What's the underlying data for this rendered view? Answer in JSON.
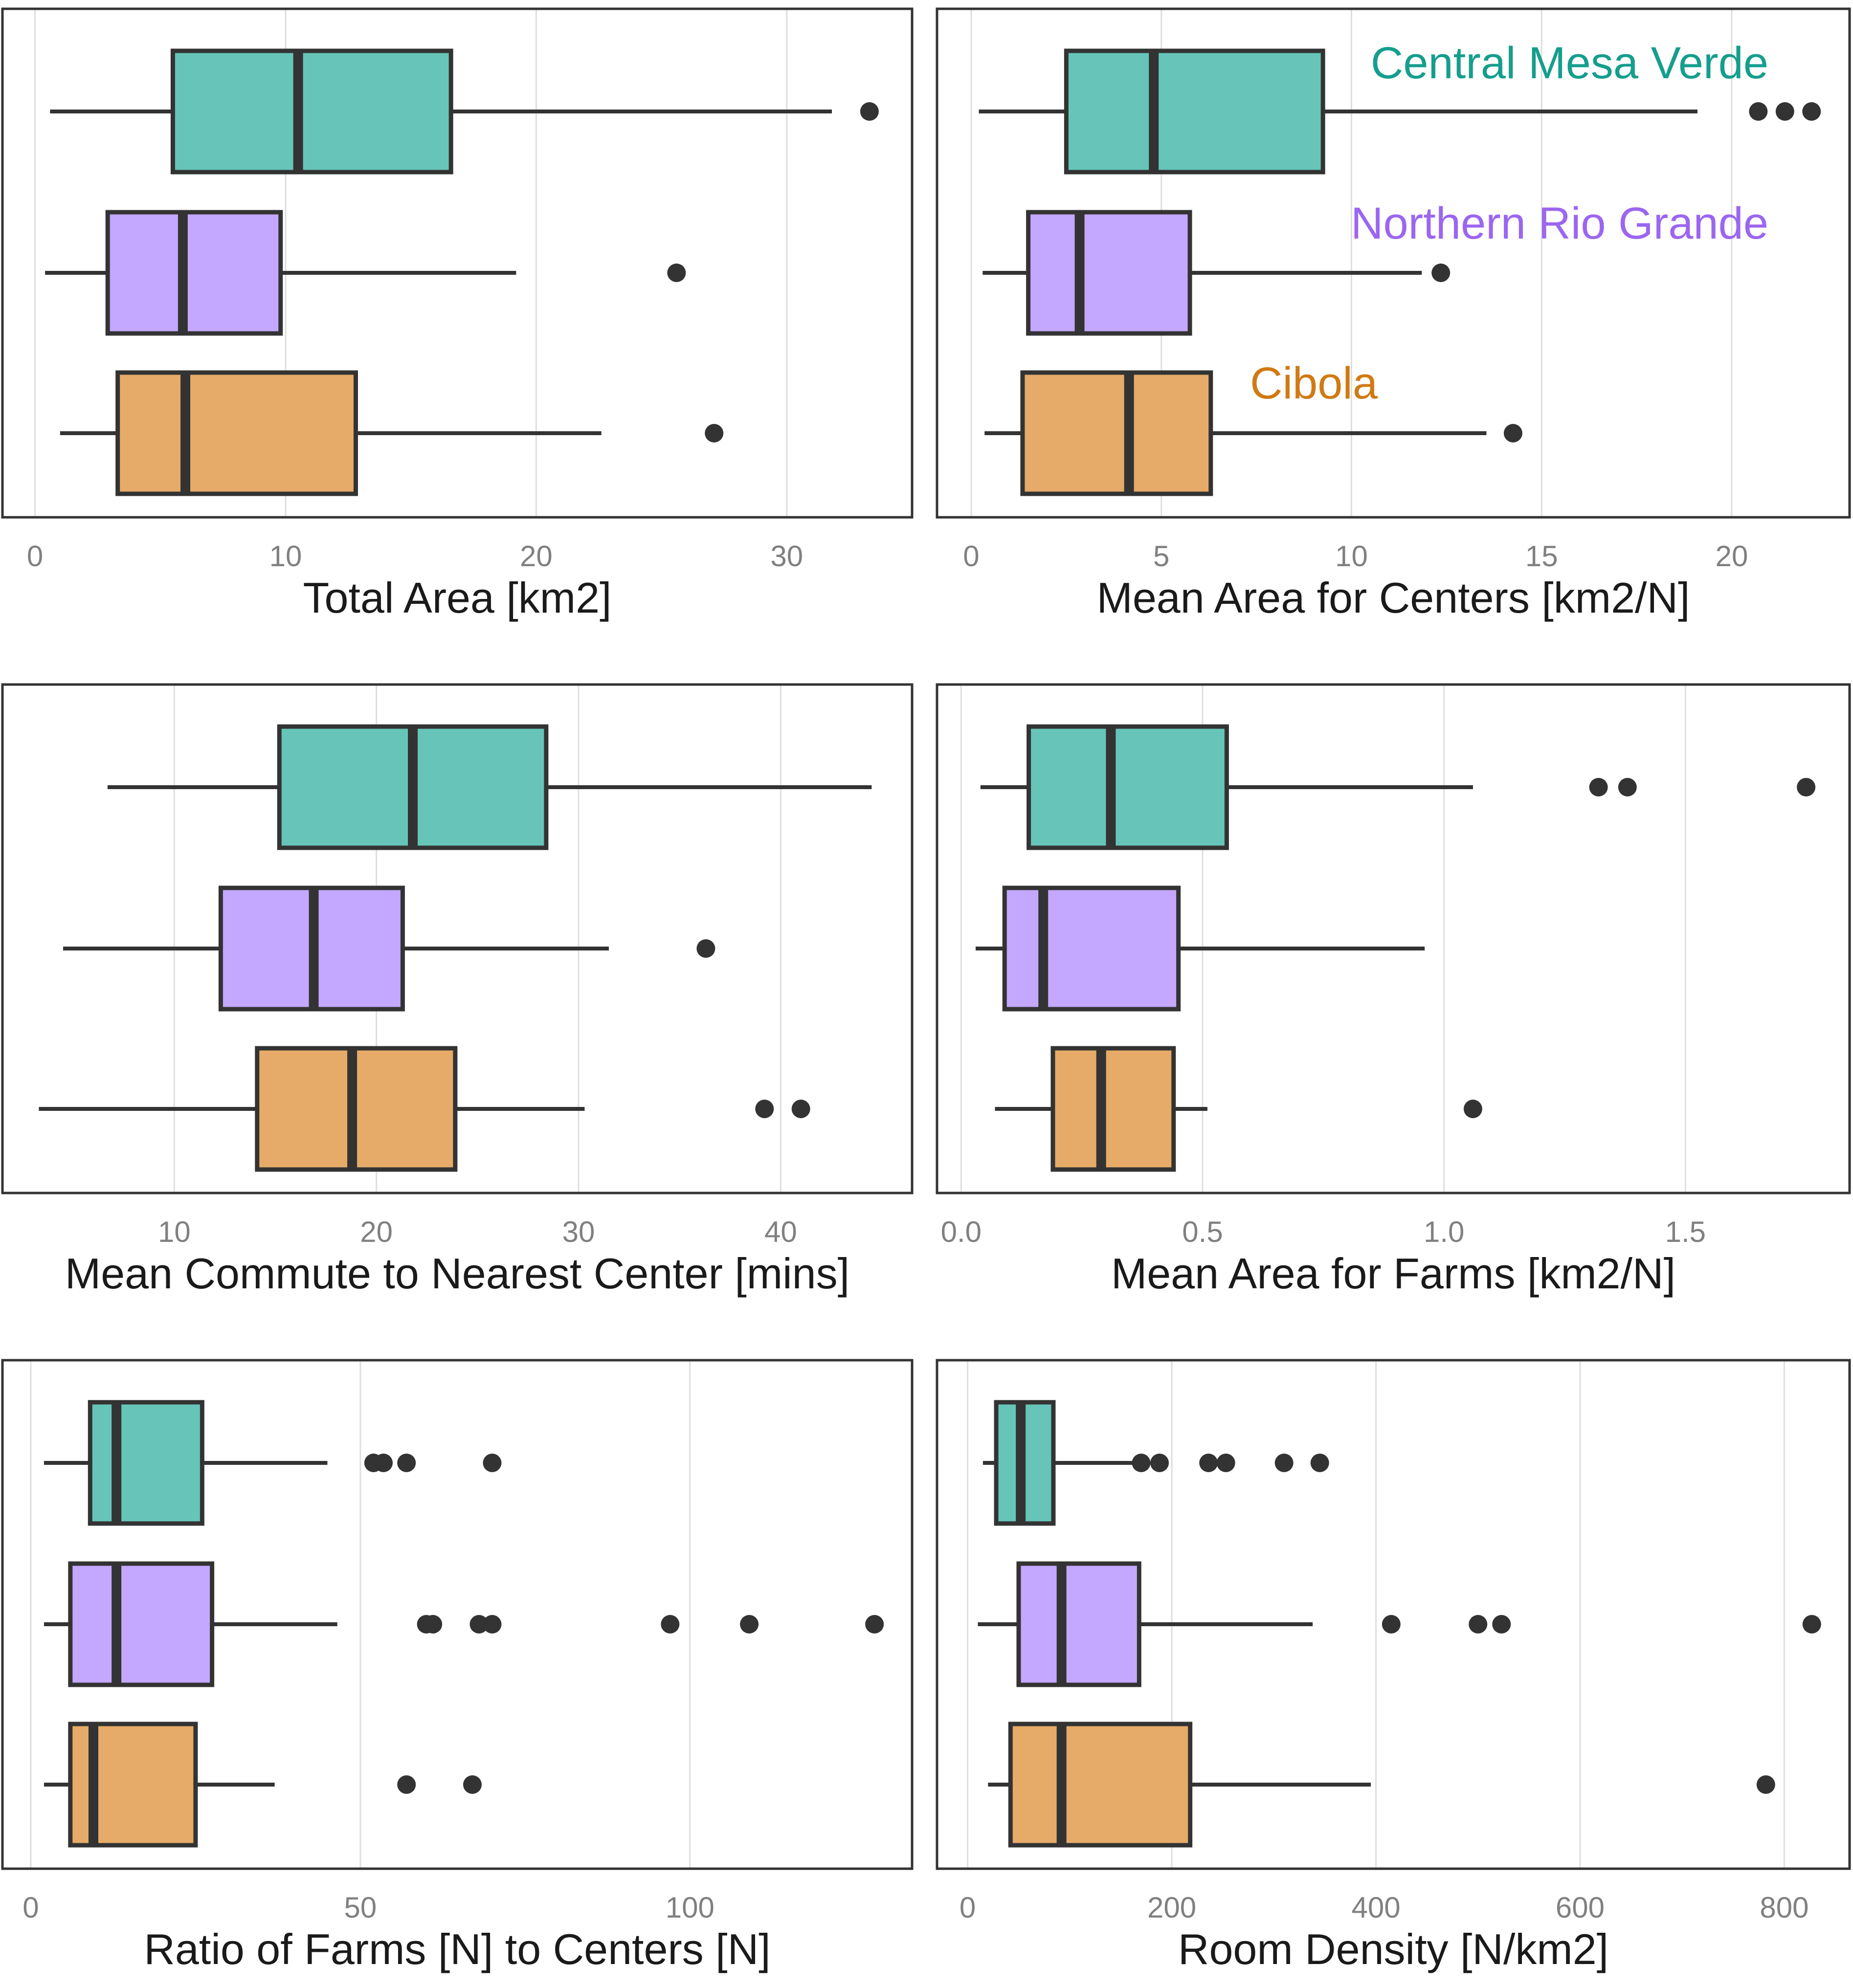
{
  "colors": {
    "Central Mesa Verde": "#66c5b8",
    "Northern Rio Grande": "#c4a8ff",
    "Cibola": "#e6ab68",
    "legend_Central Mesa Verde": "#159e8d",
    "legend_Northern Rio Grande": "#9b66f0",
    "legend_Cibola": "#d07a14",
    "stroke": "#333333",
    "grid": "#dedede"
  },
  "legend": {
    "placement": "top-right panel",
    "items": [
      "Central Mesa Verde",
      "Northern Rio Grande",
      "Cibola"
    ]
  },
  "chart_data": [
    {
      "type": "boxplot",
      "orientation": "horizontal",
      "xlabel": "Total Area [km2]",
      "xlim": [
        -1.3,
        35
      ],
      "ticks": [
        0,
        10,
        20,
        30
      ],
      "grid": true,
      "series": [
        {
          "name": "Central Mesa Verde",
          "min": 0.6,
          "q1": 5.5,
          "median": 10.5,
          "q3": 16.6,
          "max": 31.8,
          "outliers": [
            33.3
          ]
        },
        {
          "name": "Northern Rio Grande",
          "min": 0.4,
          "q1": 2.9,
          "median": 5.9,
          "q3": 9.8,
          "max": 19.2,
          "outliers": [
            25.6
          ]
        },
        {
          "name": "Cibola",
          "min": 1.0,
          "q1": 3.3,
          "median": 6.0,
          "q3": 12.8,
          "max": 22.6,
          "outliers": [
            27.1
          ]
        }
      ]
    },
    {
      "type": "boxplot",
      "orientation": "horizontal",
      "xlabel": "Mean Area for Centers [km2/N]",
      "xlim": [
        -0.9,
        23.1
      ],
      "ticks": [
        0,
        5,
        10,
        15,
        20
      ],
      "grid": true,
      "series": [
        {
          "name": "Central Mesa Verde",
          "min": 0.2,
          "q1": 2.5,
          "median": 4.8,
          "q3": 9.25,
          "max": 19.1,
          "outliers": [
            20.7,
            21.4,
            22.1
          ]
        },
        {
          "name": "Northern Rio Grande",
          "min": 0.3,
          "q1": 1.5,
          "median": 2.85,
          "q3": 5.75,
          "max": 11.85,
          "outliers": [
            12.35
          ]
        },
        {
          "name": "Cibola",
          "min": 0.35,
          "q1": 1.35,
          "median": 4.15,
          "q3": 6.3,
          "max": 13.55,
          "outliers": [
            14.25
          ]
        }
      ]
    },
    {
      "type": "boxplot",
      "orientation": "horizontal",
      "xlabel": "Mean Commute to Nearest Center [mins]",
      "xlim": [
        1.5,
        46.5
      ],
      "ticks": [
        10,
        20,
        30,
        40
      ],
      "grid": true,
      "series": [
        {
          "name": "Central Mesa Verde",
          "min": 6.7,
          "q1": 15.2,
          "median": 21.8,
          "q3": 28.4,
          "max": 44.5,
          "outliers": []
        },
        {
          "name": "Northern Rio Grande",
          "min": 4.5,
          "q1": 12.3,
          "median": 16.9,
          "q3": 21.3,
          "max": 31.5,
          "outliers": [
            36.3
          ]
        },
        {
          "name": "Cibola",
          "min": 3.3,
          "q1": 14.1,
          "median": 18.8,
          "q3": 23.9,
          "max": 30.3,
          "outliers": [
            39.2,
            41.0
          ]
        }
      ]
    },
    {
      "type": "boxplot",
      "orientation": "horizontal",
      "xlabel": "Mean Area for Farms [km2/N]",
      "xlim": [
        -0.05,
        1.84
      ],
      "ticks": [
        0.0,
        0.5,
        1.0,
        1.5
      ],
      "tick_labels": [
        "0.0",
        "0.5",
        "1.0",
        "1.5"
      ],
      "grid": true,
      "series": [
        {
          "name": "Central Mesa Verde",
          "min": 0.04,
          "q1": 0.14,
          "median": 0.31,
          "q3": 0.55,
          "max": 1.06,
          "outliers": [
            1.32,
            1.38,
            1.75
          ]
        },
        {
          "name": "Northern Rio Grande",
          "min": 0.03,
          "q1": 0.09,
          "median": 0.17,
          "q3": 0.45,
          "max": 0.96,
          "outliers": []
        },
        {
          "name": "Cibola",
          "min": 0.07,
          "q1": 0.19,
          "median": 0.29,
          "q3": 0.44,
          "max": 0.51,
          "outliers": [
            1.06
          ]
        }
      ]
    },
    {
      "type": "boxplot",
      "orientation": "horizontal",
      "xlabel": "Ratio of Farms [N] to Centers [N]",
      "xlim": [
        -4.3,
        133.7
      ],
      "ticks": [
        0,
        50,
        100
      ],
      "grid": true,
      "series": [
        {
          "name": "Central Mesa Verde",
          "min": 2,
          "q1": 9,
          "median": 13,
          "q3": 26,
          "max": 45,
          "outliers": [
            52,
            53.5,
            57,
            70
          ]
        },
        {
          "name": "Northern Rio Grande",
          "min": 2,
          "q1": 6,
          "median": 13,
          "q3": 27.5,
          "max": 46.5,
          "outliers": [
            60,
            61,
            68,
            70,
            97,
            109,
            128
          ]
        },
        {
          "name": "Cibola",
          "min": 2,
          "q1": 6,
          "median": 9.5,
          "q3": 25,
          "max": 37,
          "outliers": [
            57,
            67
          ]
        }
      ]
    },
    {
      "type": "boxplot",
      "orientation": "horizontal",
      "xlabel": "Room Density [N/km2]",
      "xlim": [
        -30,
        864
      ],
      "ticks": [
        0,
        200,
        400,
        600,
        800
      ],
      "grid": true,
      "series": [
        {
          "name": "Central Mesa Verde",
          "min": 15,
          "q1": 28,
          "median": 52,
          "q3": 84,
          "max": 163,
          "outliers": [
            170,
            188,
            236,
            253,
            310,
            345
          ]
        },
        {
          "name": "Northern Rio Grande",
          "min": 10,
          "q1": 50,
          "median": 92,
          "q3": 168,
          "max": 338,
          "outliers": [
            415,
            500,
            523,
            827
          ]
        },
        {
          "name": "Cibola",
          "min": 20,
          "q1": 42,
          "median": 92,
          "q3": 218,
          "max": 395,
          "outliers": [
            782
          ]
        }
      ]
    }
  ]
}
